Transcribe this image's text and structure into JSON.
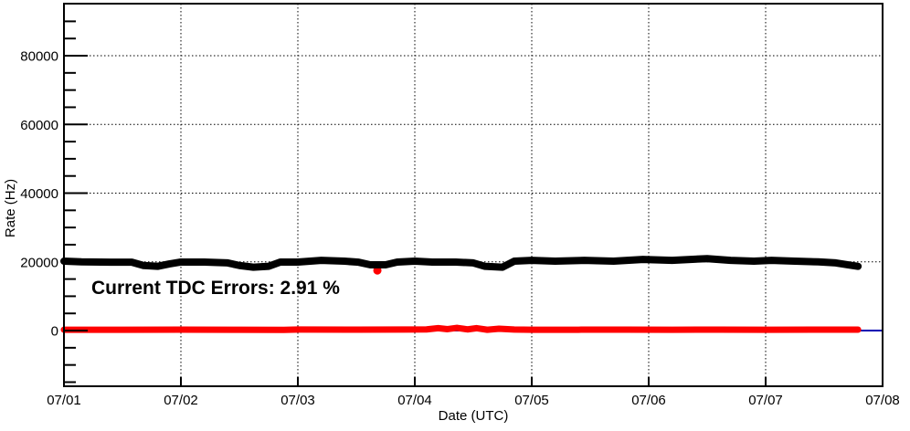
{
  "chart_data": {
    "type": "line",
    "title": "",
    "xlabel": "Date (UTC)",
    "ylabel": "Rate (Hz)",
    "x_tick_labels": [
      "07/01",
      "07/02",
      "07/03",
      "07/04",
      "07/05",
      "07/06",
      "07/07",
      "07/08"
    ],
    "x_domain_days": [
      1,
      8
    ],
    "ylim": [
      -16200,
      95150
    ],
    "y_major_ticks": [
      0,
      20000,
      40000,
      60000,
      80000
    ],
    "y_minor_step": 5000,
    "grid": "dotted",
    "legend": "none",
    "annotation": {
      "text": "Current TDC Errors: 2.91 %",
      "color": "#ff0000"
    },
    "colors": {
      "frame": "#000000",
      "grid": "#000000",
      "total_rate": "#000000",
      "tdc_error_rate": "#ff0000",
      "zero_baseline": "#0000b3"
    },
    "series": [
      {
        "name": "zero-baseline",
        "color": "#0000b3",
        "stroke_width": 2,
        "points": [
          [
            1.0,
            0
          ],
          [
            8.0,
            0
          ]
        ]
      },
      {
        "name": "tdc-error-rate",
        "color": "#ff0000",
        "stroke_width": 7,
        "points": [
          [
            1.0,
            260
          ],
          [
            1.5,
            260
          ],
          [
            2.0,
            280
          ],
          [
            2.5,
            250
          ],
          [
            2.88,
            220
          ],
          [
            3.0,
            300
          ],
          [
            3.5,
            270
          ],
          [
            3.9,
            300
          ],
          [
            4.1,
            350
          ],
          [
            4.2,
            700
          ],
          [
            4.28,
            420
          ],
          [
            4.36,
            800
          ],
          [
            4.45,
            350
          ],
          [
            4.53,
            700
          ],
          [
            4.62,
            250
          ],
          [
            4.72,
            550
          ],
          [
            4.85,
            320
          ],
          [
            5.0,
            230
          ],
          [
            5.4,
            260
          ],
          [
            5.8,
            290
          ],
          [
            6.2,
            260
          ],
          [
            6.6,
            290
          ],
          [
            7.0,
            260
          ],
          [
            7.4,
            280
          ],
          [
            7.79,
            270
          ]
        ],
        "outliers": [
          [
            3.68,
            17500
          ]
        ]
      },
      {
        "name": "total-rate",
        "color": "#000000",
        "stroke_width": 8,
        "points": [
          [
            1.0,
            20200
          ],
          [
            1.15,
            20000
          ],
          [
            1.4,
            19900
          ],
          [
            1.58,
            19900
          ],
          [
            1.68,
            18950
          ],
          [
            1.8,
            18700
          ],
          [
            1.9,
            19400
          ],
          [
            2.0,
            19950
          ],
          [
            2.2,
            19950
          ],
          [
            2.4,
            19700
          ],
          [
            2.5,
            18950
          ],
          [
            2.62,
            18450
          ],
          [
            2.75,
            18700
          ],
          [
            2.85,
            19950
          ],
          [
            3.0,
            19950
          ],
          [
            3.2,
            20450
          ],
          [
            3.4,
            20200
          ],
          [
            3.52,
            19900
          ],
          [
            3.62,
            19150
          ],
          [
            3.75,
            19150
          ],
          [
            3.85,
            19950
          ],
          [
            4.0,
            20200
          ],
          [
            4.15,
            19950
          ],
          [
            4.35,
            19950
          ],
          [
            4.5,
            19700
          ],
          [
            4.6,
            18700
          ],
          [
            4.75,
            18450
          ],
          [
            4.85,
            20200
          ],
          [
            5.0,
            20450
          ],
          [
            5.2,
            20200
          ],
          [
            5.45,
            20450
          ],
          [
            5.7,
            20200
          ],
          [
            5.95,
            20700
          ],
          [
            6.2,
            20450
          ],
          [
            6.5,
            20950
          ],
          [
            6.7,
            20450
          ],
          [
            6.9,
            20200
          ],
          [
            7.05,
            20450
          ],
          [
            7.25,
            20200
          ],
          [
            7.45,
            20000
          ],
          [
            7.6,
            19700
          ],
          [
            7.7,
            19150
          ],
          [
            7.79,
            18700
          ]
        ]
      }
    ]
  }
}
